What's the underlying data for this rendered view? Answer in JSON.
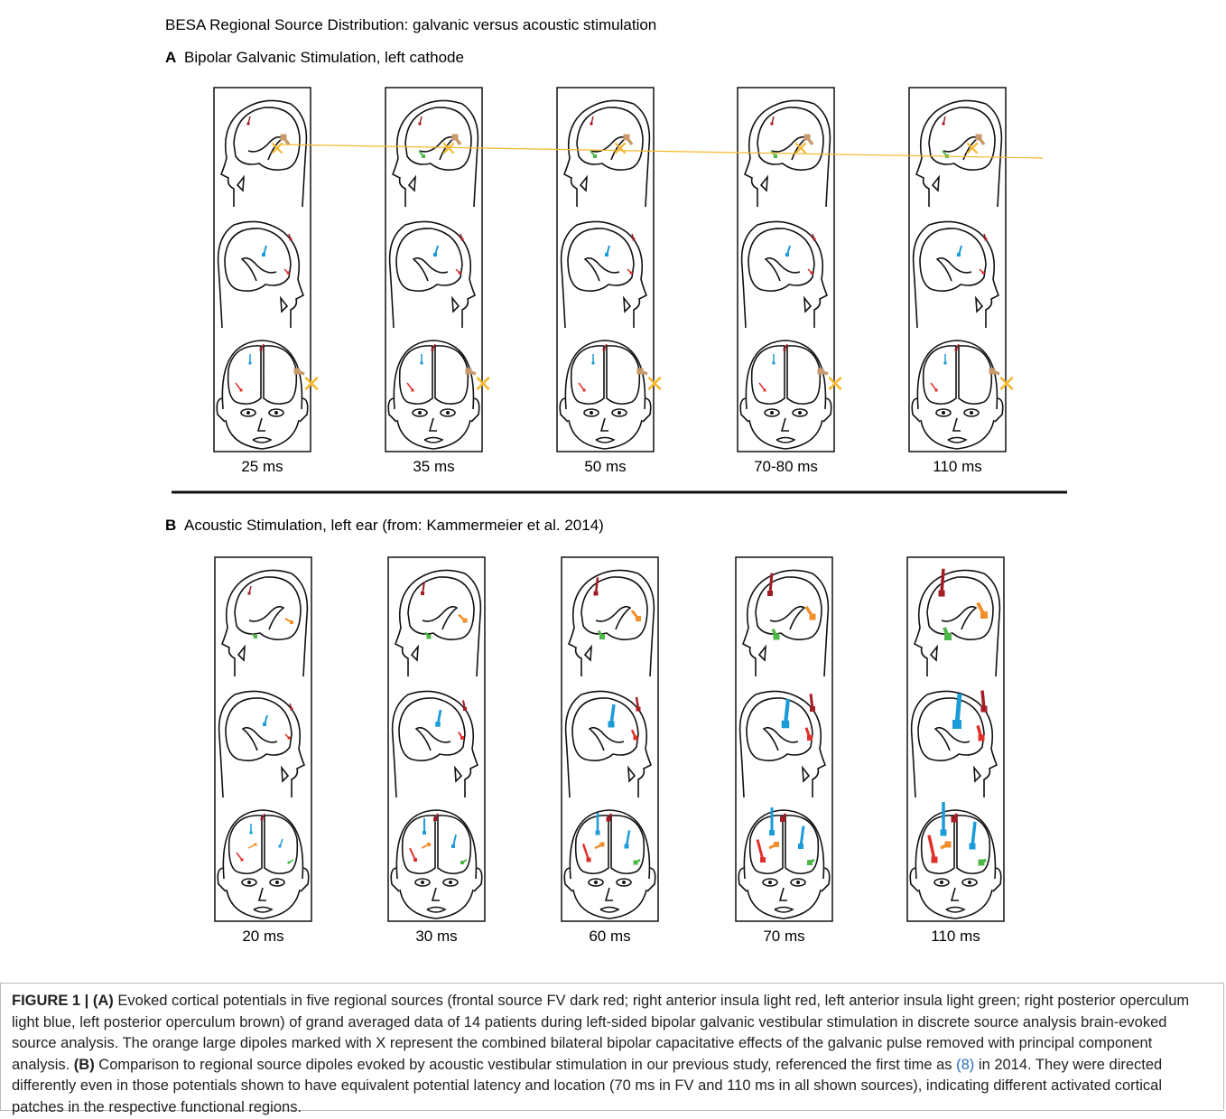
{
  "header": {
    "title": "BESA Regional Source Distribution: galvanic versus acoustic stimulation"
  },
  "panels": [
    {
      "label": "A",
      "title": "Bipolar Galvanic Stimulation, left cathode",
      "times": [
        "25 ms",
        "35 ms",
        "50 ms",
        "70-80 ms",
        "110 ms"
      ]
    },
    {
      "label": "B",
      "title": "Acoustic Stimulation, left ear (from: Kammermeier et al. 2014)",
      "times": [
        "20 ms",
        "30 ms",
        "60 ms",
        "70 ms",
        "110 ms"
      ]
    }
  ],
  "caption": {
    "figure": "FIGURE 1 |",
    "a_label": "(A)",
    "a_text": "Evoked cortical potentials in five regional sources (frontal source FV dark red; right anterior insula light red, left anterior insula light green; right posterior operculum light blue, left posterior operculum brown) of grand averaged data of 14 patients during left-sided bipolar galvanic vestibular stimulation in discrete source analysis brain-evoked source analysis. The orange large dipoles marked with X represent the combined bilateral bipolar capacitative effects of the galvanic pulse removed with principal component analysis.",
    "b_label": "(B)",
    "b_text_1": "Comparison to regional source dipoles evoked by acoustic vestibular stimulation in our previous study, referenced the first time as",
    "ref": "(8)",
    "b_text_2": "in 2014. They were directed differently even in those potentials shown to have equivalent potential latency and location (70 ms in FV and 110 ms in all shown sources), indicating different activated cortical patches in the respective functional regions."
  }
}
